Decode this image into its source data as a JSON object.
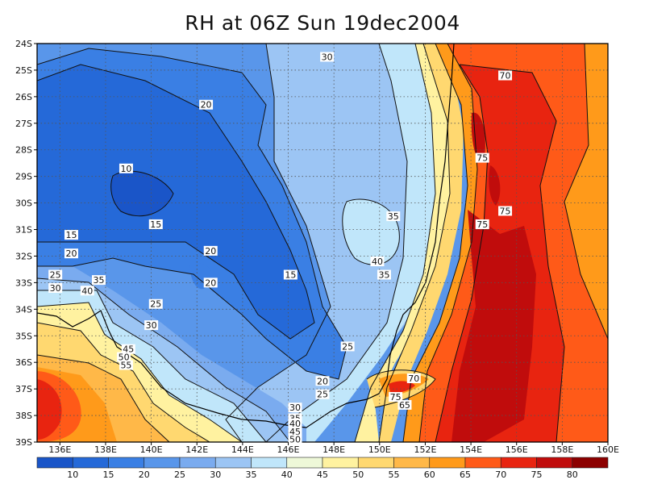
{
  "title": "RH at 06Z Sun 19dec2004",
  "lat_labels": [
    "24S",
    "25S",
    "26S",
    "27S",
    "28S",
    "29S",
    "30S",
    "31S",
    "32S",
    "33S",
    "34S",
    "35S",
    "36S",
    "37S",
    "38S",
    "39S"
  ],
  "lon_labels": [
    "136E",
    "138E",
    "140E",
    "142E",
    "144E",
    "146E",
    "148E",
    "150E",
    "152E",
    "154E",
    "156E",
    "158E",
    "160E"
  ],
  "colorbar": {
    "labels": [
      "10",
      "15",
      "20",
      "25",
      "30",
      "35",
      "40",
      "45",
      "50",
      "55",
      "60",
      "65",
      "70",
      "75",
      "80"
    ],
    "colors": [
      "#1a55c8",
      "#2569d8",
      "#3a7fe4",
      "#5996ea",
      "#7aabef",
      "#9cc5f4",
      "#c0e6fa",
      "#eef8d8",
      "#fff2a0",
      "#ffd870",
      "#ffb848",
      "#ff9a1a",
      "#ff5a18",
      "#e82410",
      "#c00c0c",
      "#8c0000"
    ]
  },
  "contour_labels": [
    {
      "text": "30",
      "lon": 147.7,
      "lat": -24.5
    },
    {
      "text": "70",
      "lon": 155.5,
      "lat": -25.2
    },
    {
      "text": "20",
      "lon": 142.4,
      "lat": -26.3
    },
    {
      "text": "75",
      "lon": 154.5,
      "lat": -28.3
    },
    {
      "text": "10",
      "lon": 138.9,
      "lat": -28.7
    },
    {
      "text": "75",
      "lon": 155.5,
      "lat": -30.3
    },
    {
      "text": "35",
      "lon": 150.6,
      "lat": -30.5
    },
    {
      "text": "15",
      "lon": 140.2,
      "lat": -30.8
    },
    {
      "text": "75",
      "lon": 154.5,
      "lat": -30.8
    },
    {
      "text": "15",
      "lon": 136.5,
      "lat": -31.2
    },
    {
      "text": "20",
      "lon": 136.5,
      "lat": -31.9
    },
    {
      "text": "20",
      "lon": 142.6,
      "lat": -31.8
    },
    {
      "text": "40",
      "lon": 149.9,
      "lat": -32.2
    },
    {
      "text": "15",
      "lon": 146.1,
      "lat": -32.7
    },
    {
      "text": "35",
      "lon": 150.2,
      "lat": -32.7
    },
    {
      "text": "25",
      "lon": 135.8,
      "lat": -32.7
    },
    {
      "text": "35",
      "lon": 137.7,
      "lat": -32.9
    },
    {
      "text": "20",
      "lon": 142.6,
      "lat": -33.0
    },
    {
      "text": "30",
      "lon": 135.8,
      "lat": -33.2
    },
    {
      "text": "40",
      "lon": 137.2,
      "lat": -33.3
    },
    {
      "text": "25",
      "lon": 140.2,
      "lat": -33.8
    },
    {
      "text": "30",
      "lon": 140.0,
      "lat": -34.6
    },
    {
      "text": "25",
      "lon": 148.6,
      "lat": -35.4
    },
    {
      "text": "45",
      "lon": 139.0,
      "lat": -35.5
    },
    {
      "text": "50",
      "lon": 138.8,
      "lat": -35.8
    },
    {
      "text": "55",
      "lon": 138.9,
      "lat": -36.1
    },
    {
      "text": "70",
      "lon": 151.5,
      "lat": -36.6
    },
    {
      "text": "20",
      "lon": 147.5,
      "lat": -36.7
    },
    {
      "text": "75",
      "lon": 150.7,
      "lat": -37.3
    },
    {
      "text": "25",
      "lon": 147.5,
      "lat": -37.2
    },
    {
      "text": "65",
      "lon": 151.1,
      "lat": -37.6
    },
    {
      "text": "30",
      "lon": 146.3,
      "lat": -37.7
    },
    {
      "text": "35",
      "lon": 146.3,
      "lat": -38.1
    },
    {
      "text": "40",
      "lon": 146.3,
      "lat": -38.3
    },
    {
      "text": "45",
      "lon": 146.3,
      "lat": -38.6
    },
    {
      "text": "50",
      "lon": 146.3,
      "lat": -38.9
    }
  ]
}
